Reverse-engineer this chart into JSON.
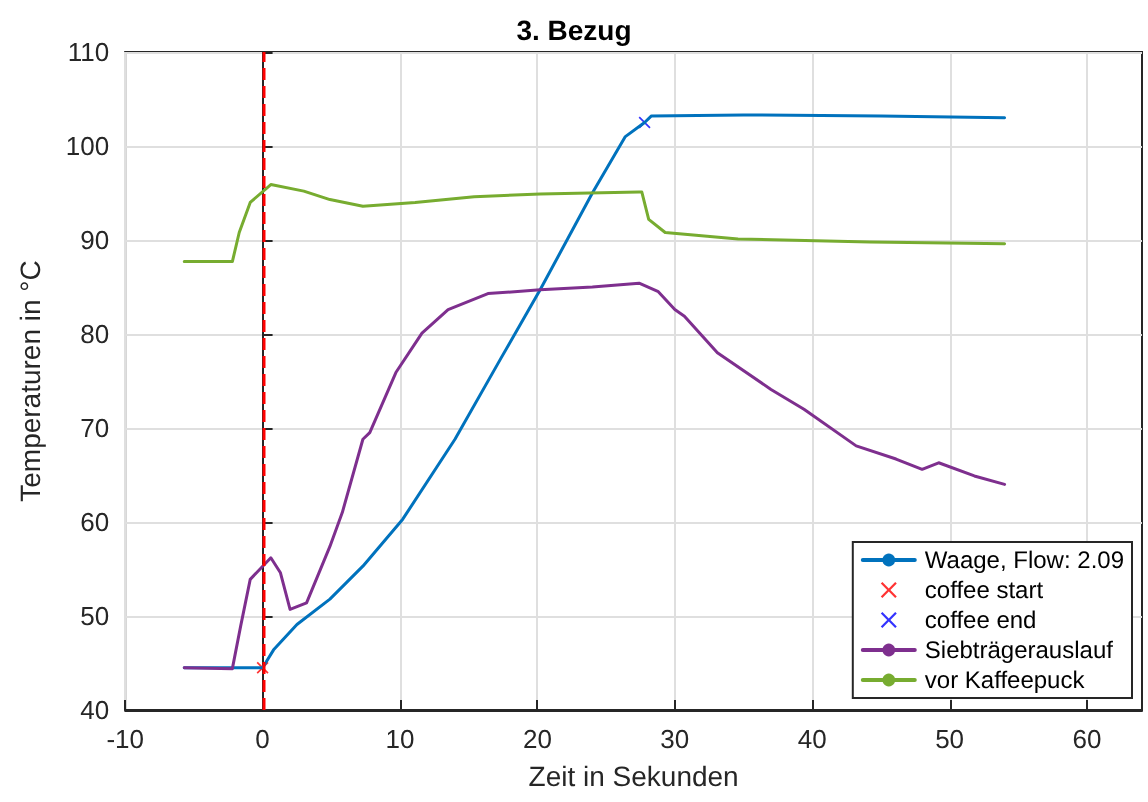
{
  "chart_data": {
    "type": "line",
    "title": "3. Bezug",
    "xlabel": "Zeit in Sekunden",
    "ylabel": "Temperaturen in °C",
    "xlim": [
      -10,
      64
    ],
    "xticks": [
      -10,
      0,
      10,
      20,
      30,
      40,
      50,
      60
    ],
    "ylim": [
      40,
      110
    ],
    "yticks": [
      40,
      50,
      60,
      70,
      80,
      90,
      100,
      110
    ],
    "grid": true,
    "legend": "bottom right",
    "marker": "none",
    "line_style": "solid",
    "ref_lines": [
      {
        "axis": "x",
        "value": 0,
        "color": "#ff0000",
        "line_style": "dashed"
      }
    ],
    "series": [
      {
        "name": "Waage, Flow: 2.09",
        "color": "#0072bd",
        "x": [
          -5.7,
          0,
          0.8,
          2.5,
          4.9,
          7.3,
          10.2,
          14,
          17.3,
          20.2,
          24,
          26.4,
          27.8,
          28.3,
          35,
          45,
          54
        ],
        "values": [
          44.5,
          44.5,
          46.4,
          49.1,
          51.8,
          55.3,
          60.3,
          68.8,
          77.3,
          84.7,
          95,
          101,
          102.5,
          103.2,
          103.3,
          103.2,
          103
        ]
      },
      {
        "name": "coffee start",
        "type": "scatter",
        "marker": "cross",
        "color": "#ff0000",
        "x": [
          0
        ],
        "values": [
          44.5
        ]
      },
      {
        "name": "coffee end",
        "type": "scatter",
        "marker": "cross",
        "color": "#0000ff",
        "x": [
          27.8
        ],
        "values": [
          102.5
        ]
      },
      {
        "name": "Siebträgerauslauf",
        "color": "#7e2f8e",
        "x": [
          -5.7,
          -2.2,
          -1.6,
          -0.9,
          0.6,
          1.3,
          2.0,
          3.2,
          4.9,
          5.8,
          7.3,
          7.8,
          9.7,
          11.6,
          13.5,
          16.4,
          20.2,
          24,
          27.4,
          28.8,
          30,
          30.7,
          33.1,
          37,
          39.4,
          43.2,
          46.1,
          48,
          49.2,
          51.8,
          54
        ],
        "values": [
          44.5,
          44.4,
          48.9,
          53.9,
          56.2,
          54.6,
          50.7,
          51.4,
          57.4,
          61,
          68.8,
          69.5,
          75.9,
          80.1,
          82.6,
          84.3,
          84.7,
          85,
          85.4,
          84.5,
          82.6,
          81.9,
          78,
          74.1,
          72,
          68.1,
          66.7,
          65.6,
          66.3,
          64.9,
          64
        ]
      },
      {
        "name": "vor Kaffeepuck",
        "color": "#77ac30",
        "x": [
          -5.7,
          -2.2,
          -1.7,
          -0.9,
          0.6,
          3,
          4.9,
          7.3,
          11.1,
          15.4,
          20.2,
          27.4,
          27.6,
          28.1,
          29.3,
          34.6,
          44.2,
          54
        ],
        "values": [
          87.7,
          87.7,
          90.8,
          94,
          95.9,
          95.2,
          94.3,
          93.6,
          94,
          94.6,
          94.9,
          95.1,
          95.1,
          92.2,
          90.8,
          90.1,
          89.8,
          89.6
        ]
      }
    ]
  }
}
